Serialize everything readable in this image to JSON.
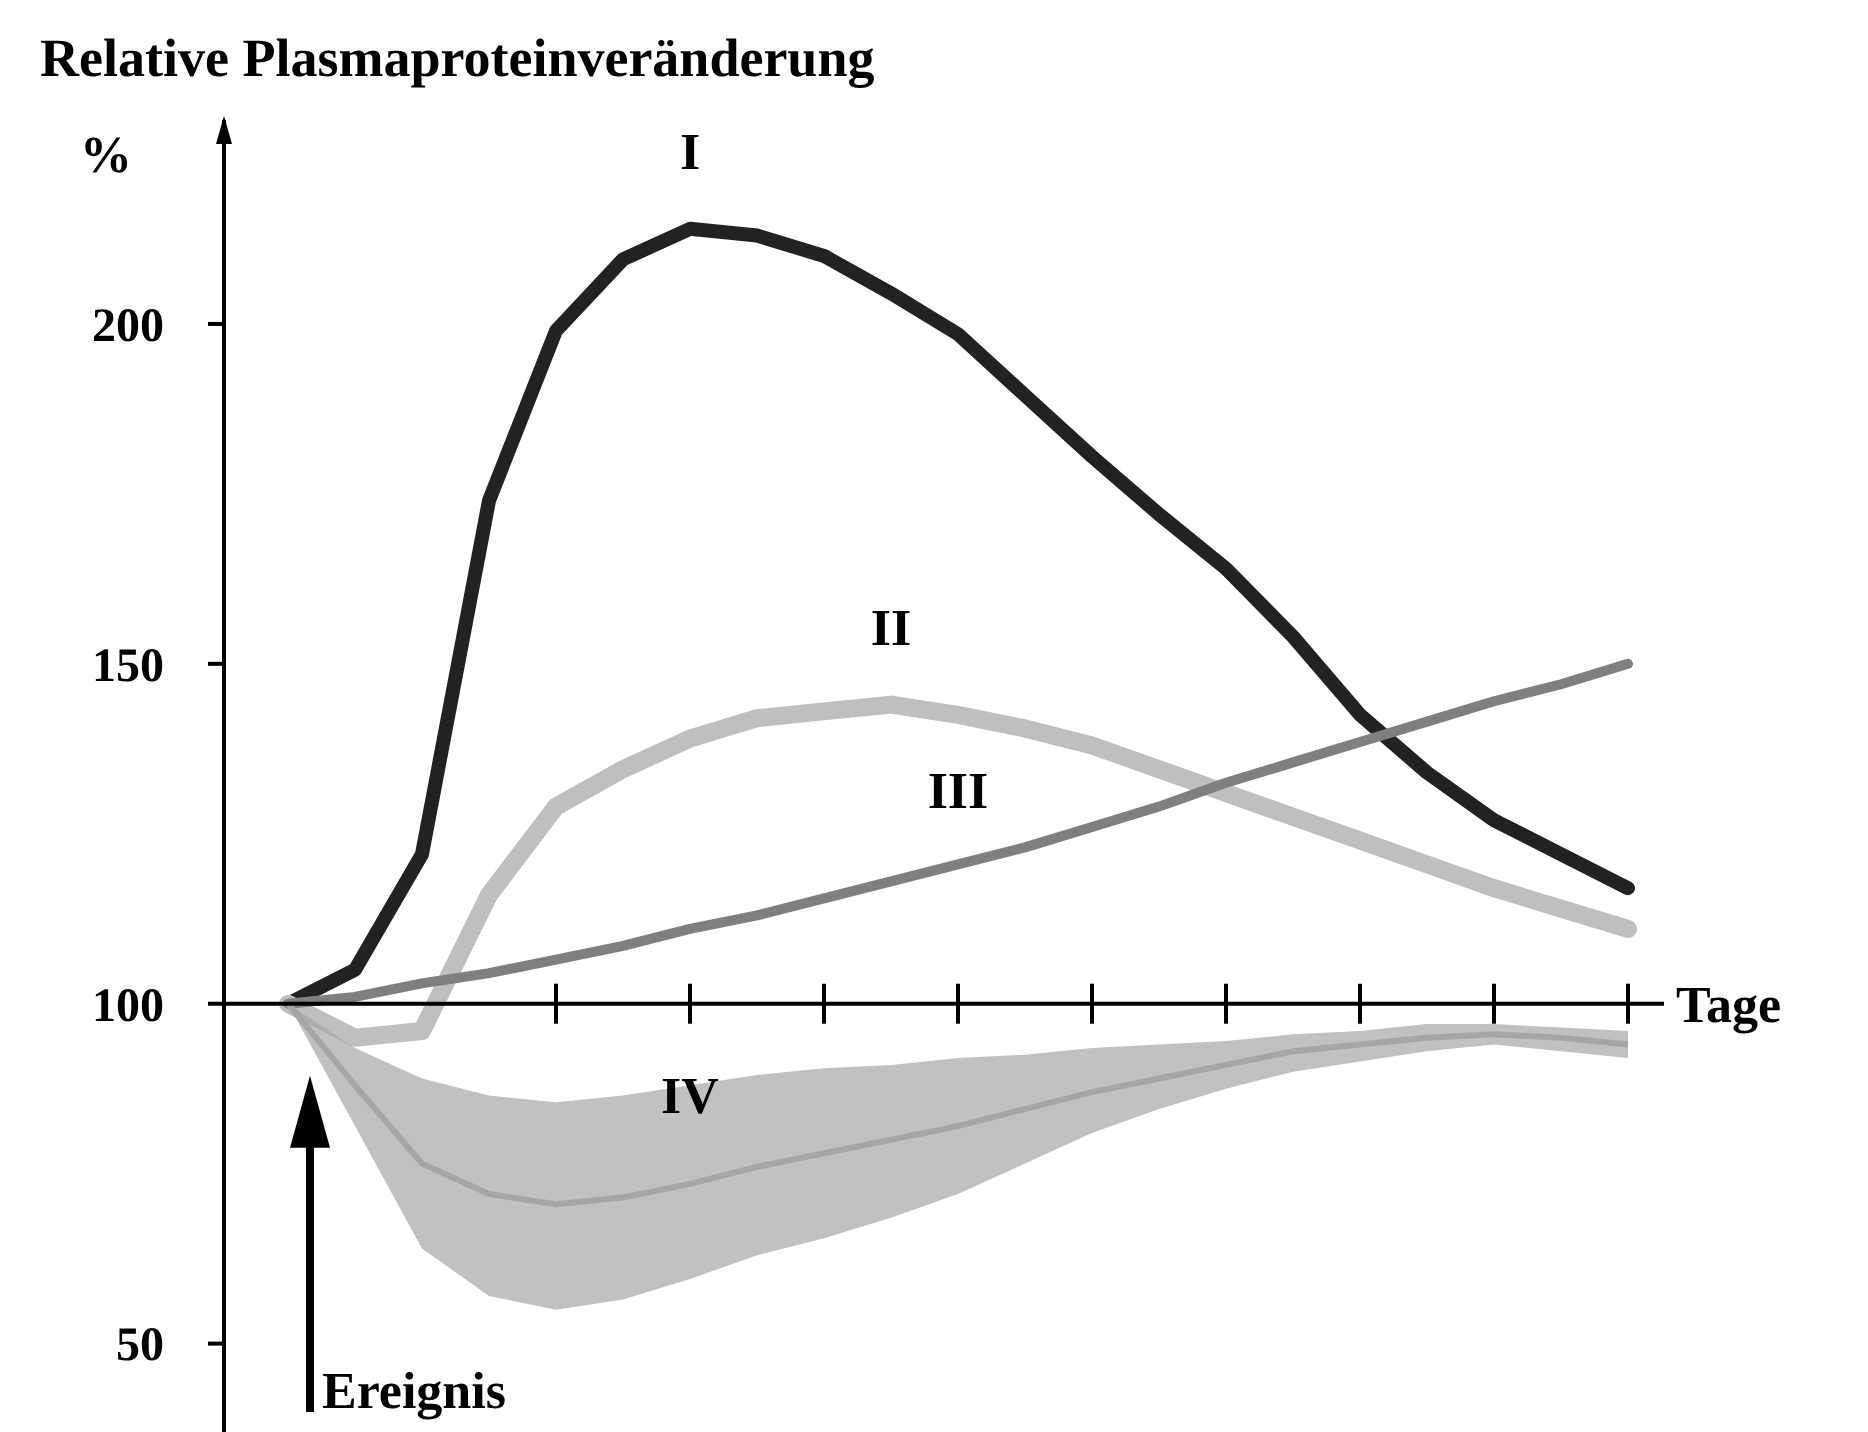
{
  "chart_data": {
    "type": "line",
    "title": "Relative Plasmaproteinveränderung",
    "ylabel": "%",
    "xlabel": "Tage",
    "categories": [
      null,
      null,
      null,
      null,
      null,
      null,
      null,
      null,
      null,
      null,
      null,
      null,
      null,
      null,
      null,
      null,
      null,
      null,
      null,
      null,
      null
    ],
    "ylim": [
      37,
      230
    ],
    "yticks": [
      50,
      100,
      150,
      200
    ],
    "annotations": [
      "Ereignis"
    ],
    "series": [
      {
        "name": "I",
        "color": "#222222",
        "values": [
          100,
          105,
          122,
          174,
          199,
          209.5,
          214,
          213,
          210,
          204.5,
          198.5,
          189.5,
          180.5,
          172,
          164,
          154,
          142.5,
          134,
          127,
          122,
          117
        ]
      },
      {
        "name": "II",
        "color": "#bfbfbf",
        "values": [
          100,
          95,
          96,
          116,
          129,
          134.5,
          139,
          142,
          143,
          144,
          142.5,
          140.5,
          138,
          134.5,
          131,
          127.5,
          124,
          120.5,
          117,
          114,
          111
        ]
      },
      {
        "name": "III",
        "color": "#7f7f7f",
        "values": [
          100,
          101,
          103,
          104.5,
          106.5,
          108.5,
          111,
          113,
          115.5,
          118,
          120.5,
          123,
          126,
          129,
          132.5,
          135.5,
          138.5,
          141.5,
          144.5,
          147,
          150
        ]
      },
      {
        "name": "IV",
        "color": "#a6a6a6",
        "values": [
          100,
          88,
          76.5,
          72,
          70.5,
          71.5,
          73.5,
          76,
          78,
          80,
          82,
          84.5,
          87,
          89,
          91,
          93,
          94,
          95,
          95.5,
          95,
          94
        ],
        "upper": [
          100,
          93.5,
          89,
          86.5,
          85.5,
          86.5,
          88,
          89.5,
          90.5,
          91,
          92,
          92.5,
          93.5,
          94,
          94.5,
          95.5,
          96,
          97,
          97,
          96.5,
          96
        ],
        "lower": [
          100,
          82,
          64,
          57,
          55,
          56.5,
          59.5,
          63,
          65.5,
          68.5,
          72,
          76.5,
          81,
          84.5,
          87.5,
          90,
          91.5,
          93,
          94,
          93,
          92
        ]
      }
    ]
  }
}
